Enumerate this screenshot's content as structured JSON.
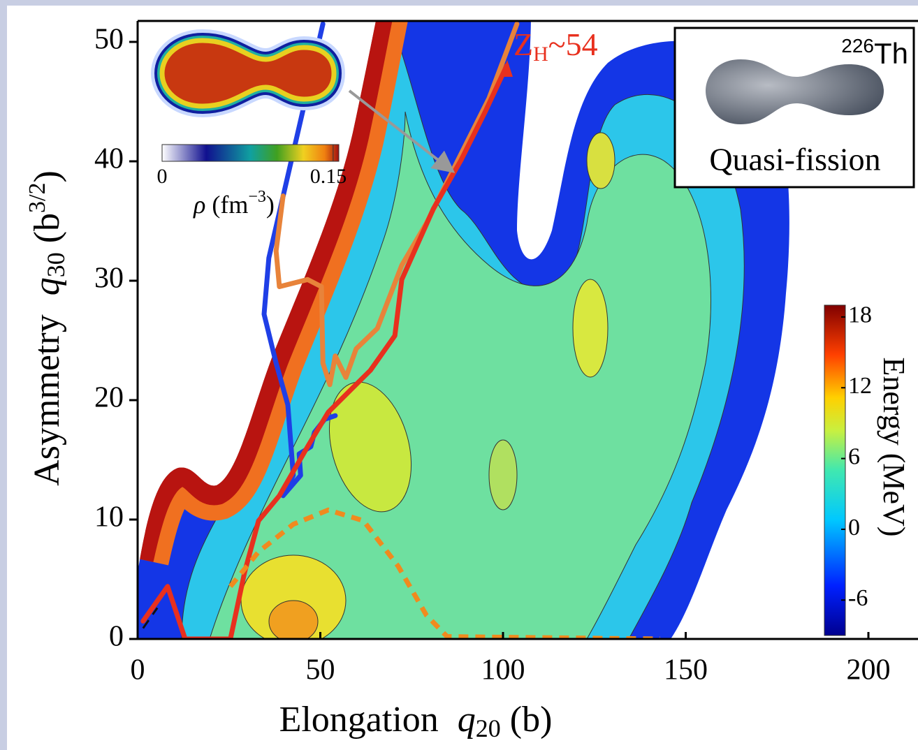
{
  "chart_data": {
    "type": "contour",
    "xlabel": {
      "text": "Elongation",
      "symbol": "q",
      "subscript": "20",
      "unit": "(b)"
    },
    "ylabel": {
      "text": "Asymmetry",
      "symbol": "q",
      "subscript": "30",
      "unit": "(b",
      "unit_superscript": "3/2",
      "unit_end": ")"
    },
    "xlim": [
      0,
      212
    ],
    "ylim": [
      0,
      52
    ],
    "xticks": [
      0,
      50,
      100,
      150,
      200
    ],
    "yticks": [
      0,
      10,
      20,
      30,
      40,
      50
    ],
    "colorbar": {
      "label": "Energy (MeV)",
      "lim": [
        -9,
        19
      ],
      "ticks": [
        -6,
        0,
        6,
        12,
        18
      ]
    },
    "series": [
      {
        "color": "#1f3fe6",
        "style": "solid",
        "x": [
          50.7,
          35.9,
          34.6,
          37.9,
          41.1,
          42.6,
          39.8,
          44.6,
          44.2,
          47.4,
          48.4,
          51.2,
          54.1
        ],
        "y": [
          51.5,
          31.9,
          27.2,
          23.1,
          19.6,
          13.7,
          12.0,
          13.7,
          15.5,
          16.1,
          17.3,
          18.4,
          18.7
        ]
      },
      {
        "color": "#e8833a",
        "style": "solid",
        "x": [
          103.8,
          96.2,
          85.7,
          79.0,
          72.3,
          65.6,
          59.8,
          57.0,
          54.1,
          52.6,
          50.7,
          50.3,
          46.5,
          38.8,
          37.9,
          39.8
        ],
        "y": [
          51.5,
          45.3,
          38.9,
          34.8,
          31.3,
          26.0,
          24.3,
          21.9,
          23.7,
          21.3,
          23.1,
          29.5,
          30.1,
          29.5,
          32.5,
          37.1
        ]
      },
      {
        "color": "#e8301e",
        "style": "solid",
        "x": [
          1.5,
          8.2,
          13.0,
          25.4,
          29.3,
          33.1,
          38.8,
          46.5,
          52.2,
          63.7,
          70.4,
          72.3,
          80.9,
          88.5,
          95.2,
          101.0
        ],
        "y": [
          1.5,
          4.4,
          0.0,
          0.0,
          5.6,
          9.9,
          12.0,
          16.1,
          19.0,
          22.5,
          25.4,
          30.1,
          36.0,
          40.1,
          44.2,
          48.0
        ]
      },
      {
        "color": "#f08a1e",
        "style": "dashed",
        "x": [
          25.4,
          33.1,
          42.6,
          52.2,
          61.8,
          71.3,
          79.0,
          84.7,
          143.0
        ],
        "y": [
          4.4,
          7.3,
          9.6,
          10.8,
          9.9,
          6.1,
          2.0,
          0.2,
          0.0
        ]
      },
      {
        "color": "#111111",
        "style": "dashed",
        "x": [
          1.5,
          5.4
        ],
        "y": [
          0.9,
          2.6
        ]
      }
    ],
    "annotation": {
      "symbol": "Z",
      "subscript": "H",
      "text": "~54"
    },
    "nucleus_inset": {
      "mass_number": "226",
      "element": "Th",
      "label": "Quasi-fission"
    },
    "density_inset": {
      "lim": [
        0,
        0.155
      ],
      "ticks": [
        0,
        0.15
      ],
      "symbol": "ρ",
      "unit": "(fm",
      "unit_superscript": "−3",
      "unit_end": ")"
    }
  }
}
